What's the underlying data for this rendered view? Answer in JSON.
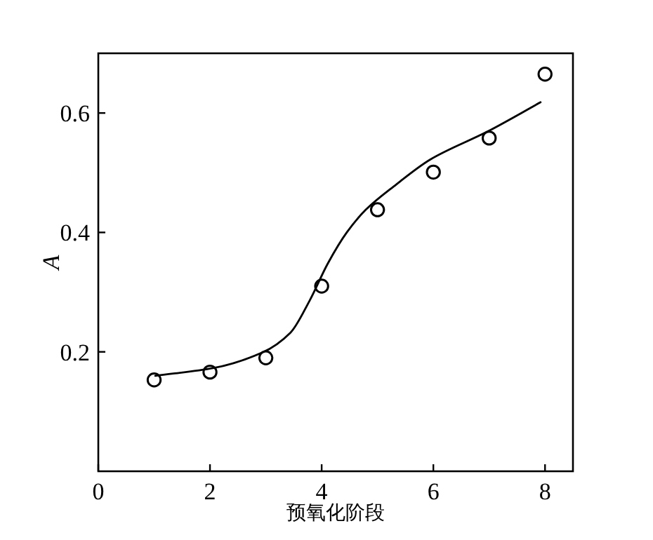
{
  "chart_data": {
    "type": "scatter",
    "xlabel": "预氧化阶段",
    "ylabel": "A",
    "xlim": [
      0,
      8.5
    ],
    "ylim": [
      0,
      0.7
    ],
    "xticks": [
      0,
      2,
      4,
      6,
      8
    ],
    "yticks": [
      0.2,
      0.4,
      0.6
    ],
    "grid": false,
    "series": [
      {
        "marker": "circle",
        "color": "#000000",
        "x": [
          1,
          2,
          3,
          4,
          5,
          6,
          7,
          8
        ],
        "values": [
          0.153,
          0.166,
          0.19,
          0.31,
          0.438,
          0.501,
          0.558,
          0.665
        ]
      },
      {
        "type": "line",
        "marker": "none",
        "color": "#000000",
        "x": [
          1.02,
          2.07,
          2.94,
          3.44,
          3.78,
          4.11,
          4.45,
          4.79,
          5.29,
          5.96,
          6.97,
          7.92
        ],
        "values": [
          0.16,
          0.173,
          0.199,
          0.232,
          0.285,
          0.348,
          0.4,
          0.438,
          0.477,
          0.523,
          0.569,
          0.618
        ]
      }
    ]
  }
}
